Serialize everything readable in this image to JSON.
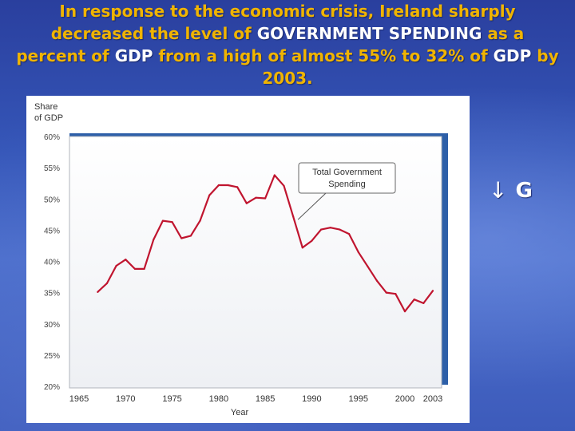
{
  "title": {
    "part1": "In response to the economic crisis, Ireland sharply decreased the level of ",
    "highlight1": "GOVERNMENT SPENDING",
    "part2": " as a percent of ",
    "highlight2": "GDP",
    "part3": " from a high of almost ",
    "highlight3": "55%",
    "part4": " to ",
    "highlight4": "32%",
    "part5": " of ",
    "highlight5": "GDP",
    "part6": " by 2003."
  },
  "side_label": {
    "arrow": "↓",
    "text": "G"
  },
  "colors": {
    "line": "#c0152f",
    "plot_border": "#2d5fa8",
    "title": "#f0b400"
  },
  "chart_data": {
    "type": "line",
    "ylabel": "Share of GDP",
    "xlabel": "Year",
    "ylim": [
      20,
      60
    ],
    "xlim": [
      1965,
      2003
    ],
    "y_ticks": [
      "20%",
      "25%",
      "30%",
      "35%",
      "40%",
      "45%",
      "50%",
      "55%",
      "60%"
    ],
    "y_tick_values": [
      20,
      25,
      30,
      35,
      40,
      45,
      50,
      55,
      60
    ],
    "x_ticks": [
      "1965",
      "1970",
      "1975",
      "1980",
      "1985",
      "1990",
      "1995",
      "2000",
      "2003"
    ],
    "x_tick_values": [
      1965,
      1970,
      1975,
      1980,
      1985,
      1990,
      1995,
      2000,
      2003
    ],
    "series": [
      {
        "name": "Total Government Spending",
        "x": [
          1967,
          1968,
          1969,
          1970,
          1971,
          1972,
          1973,
          1974,
          1975,
          1976,
          1977,
          1978,
          1979,
          1980,
          1981,
          1982,
          1983,
          1984,
          1985,
          1986,
          1987,
          1988,
          1989,
          1990,
          1991,
          1992,
          1993,
          1994,
          1995,
          1996,
          1997,
          1998,
          1999,
          2000,
          2001,
          2002,
          2003
        ],
        "values": [
          35.1,
          36.5,
          39.3,
          40.3,
          38.8,
          38.8,
          43.5,
          46.5,
          46.3,
          43.7,
          44.1,
          46.5,
          50.6,
          52.2,
          52.2,
          51.9,
          49.3,
          50.2,
          50.1,
          53.8,
          52.1,
          47.2,
          42.2,
          43.3,
          45.1,
          45.4,
          45.1,
          44.4,
          41.5,
          39.2,
          36.9,
          35.0,
          34.8,
          32.0,
          33.9,
          33.3,
          35.3
        ]
      }
    ],
    "annotations": [
      {
        "text_line1": "Total Government",
        "text_line2": "Spending",
        "points_to_year": 1988,
        "points_to_value": 47.2
      }
    ]
  }
}
